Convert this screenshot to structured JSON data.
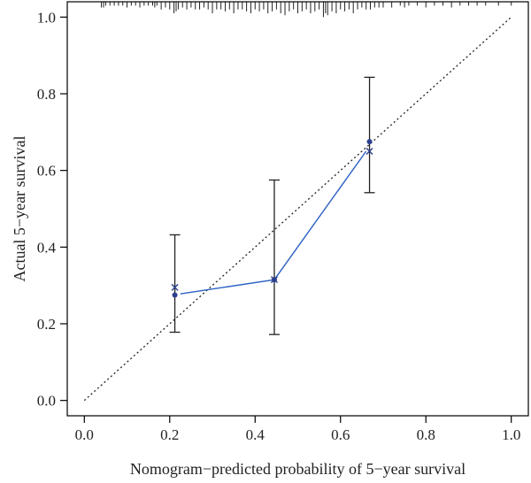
{
  "chart_data": {
    "type": "scatter",
    "title": "",
    "xlabel": "Nomogram−predicted probability of 5−year survival",
    "ylabel": "Actual 5−year survival",
    "xlim": [
      -0.04,
      1.04
    ],
    "ylim": [
      -0.04,
      1.04
    ],
    "xticks": [
      0.0,
      0.2,
      0.4,
      0.6,
      0.8,
      1.0
    ],
    "xtick_labels": [
      "0.0",
      "0.2",
      "0.4",
      "0.6",
      "0.8",
      "1.0"
    ],
    "yticks": [
      0.0,
      0.2,
      0.4,
      0.6,
      0.8,
      1.0
    ],
    "ytick_labels": [
      "0.0",
      "0.2",
      "0.4",
      "0.6",
      "0.8",
      "1.0"
    ],
    "grid": false,
    "reference_line": {
      "x": [
        0,
        1
      ],
      "y": [
        0,
        1
      ],
      "style": "dotted",
      "color": "#222222"
    },
    "apparent": {
      "color": "#2b3f8f",
      "x": [
        0.212,
        0.445,
        0.668
      ],
      "y": [
        0.275,
        0.315,
        0.675
      ],
      "ci_lower": [
        0.178,
        0.172,
        0.542
      ],
      "ci_upper": [
        0.432,
        0.575,
        0.843
      ]
    },
    "bias_corrected": {
      "color": "#2b3f8f",
      "x": [
        0.212,
        0.445,
        0.668
      ],
      "y": [
        0.295,
        0.315,
        0.65
      ]
    },
    "fitted_line": {
      "color": "#2b5fc4",
      "x": [
        0.225,
        0.445,
        0.66
      ],
      "y": [
        0.278,
        0.315,
        0.65
      ]
    },
    "rug": {
      "x": [
        0.04,
        0.045,
        0.05,
        0.06,
        0.07,
        0.08,
        0.09,
        0.1,
        0.11,
        0.12,
        0.13,
        0.14,
        0.15,
        0.16,
        0.165,
        0.17,
        0.18,
        0.19,
        0.2,
        0.21,
        0.215,
        0.22,
        0.23,
        0.24,
        0.25,
        0.26,
        0.27,
        0.28,
        0.29,
        0.3,
        0.31,
        0.32,
        0.33,
        0.34,
        0.35,
        0.36,
        0.37,
        0.38,
        0.39,
        0.4,
        0.41,
        0.42,
        0.43,
        0.44,
        0.45,
        0.46,
        0.47,
        0.48,
        0.49,
        0.5,
        0.51,
        0.52,
        0.53,
        0.54,
        0.55,
        0.56,
        0.565,
        0.57,
        0.58,
        0.59,
        0.6,
        0.61,
        0.62,
        0.63,
        0.64,
        0.65,
        0.66,
        0.67,
        0.68,
        0.69,
        0.7,
        0.72,
        0.74,
        0.75,
        0.76,
        0.78,
        0.8,
        0.82,
        0.84,
        0.86,
        0.88,
        0.9,
        0.92,
        0.94,
        0.97,
        1.0
      ],
      "len": [
        0.015,
        0.015,
        0.01,
        0.01,
        0.01,
        0.01,
        0.01,
        0.015,
        0.01,
        0.01,
        0.015,
        0.01,
        0.01,
        0.01,
        0.015,
        0.01,
        0.02,
        0.015,
        0.02,
        0.03,
        0.025,
        0.02,
        0.015,
        0.02,
        0.015,
        0.02,
        0.02,
        0.015,
        0.02,
        0.03,
        0.02,
        0.02,
        0.025,
        0.02,
        0.03,
        0.02,
        0.02,
        0.025,
        0.03,
        0.02,
        0.025,
        0.02,
        0.03,
        0.025,
        0.02,
        0.03,
        0.035,
        0.025,
        0.02,
        0.03,
        0.025,
        0.02,
        0.03,
        0.025,
        0.02,
        0.04,
        0.03,
        0.035,
        0.025,
        0.03,
        0.02,
        0.025,
        0.02,
        0.03,
        0.02,
        0.015,
        0.02,
        0.02,
        0.015,
        0.015,
        0.015,
        0.015,
        0.01,
        0.015,
        0.01,
        0.01,
        0.015,
        0.01,
        0.01,
        0.015,
        0.01,
        0.01,
        0.01,
        0.01,
        0.01,
        0.01
      ]
    }
  }
}
